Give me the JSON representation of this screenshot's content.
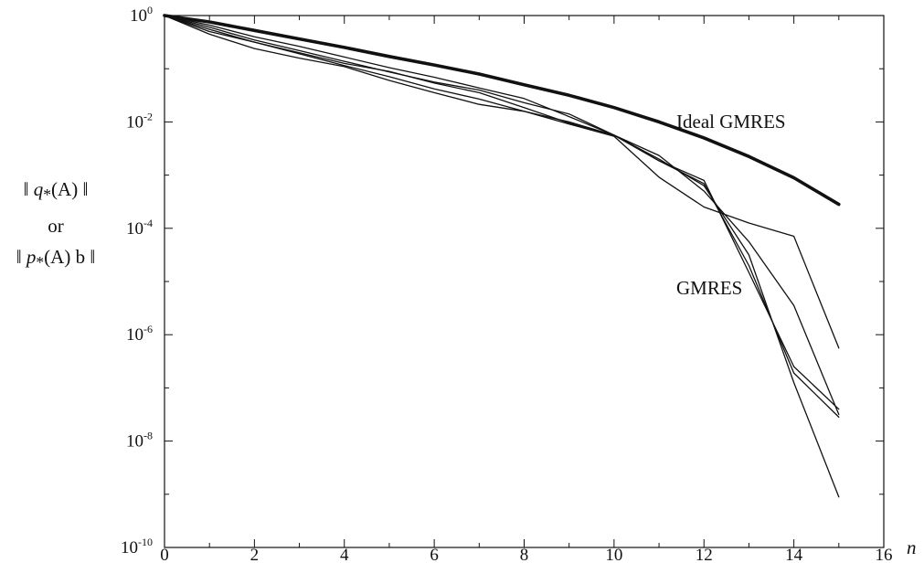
{
  "chart_data": {
    "type": "line",
    "title": "",
    "xlabel": "n",
    "ylabel": {
      "line1_left": "‖ ",
      "line1_q": "q",
      "line1_sub": "*",
      "line1_rest": "(A) ‖",
      "line2": "or",
      "line3_left": "‖ ",
      "line3_p": "p",
      "line3_sub": "*",
      "line3_rest": "(A) b ‖"
    },
    "xlim": [
      0,
      16
    ],
    "ylim_exponent": [
      -10,
      0
    ],
    "y_scale": "log10",
    "grid": false,
    "x_ticks": [
      "0",
      "2",
      "4",
      "6",
      "8",
      "10",
      "12",
      "14",
      "16"
    ],
    "y_ticks": [
      {
        "base": "10",
        "exp": "0"
      },
      {
        "base": "10",
        "exp": "-2"
      },
      {
        "base": "10",
        "exp": "-4"
      },
      {
        "base": "10",
        "exp": "-6"
      },
      {
        "base": "10",
        "exp": "-8"
      },
      {
        "base": "10",
        "exp": "-10"
      }
    ],
    "annotations": {
      "ideal": "Ideal GMRES",
      "gmres": "GMRES"
    },
    "series": [
      {
        "name": "Ideal GMRES",
        "x": [
          0,
          1,
          2,
          3,
          4,
          5,
          6,
          7,
          8,
          9,
          10,
          11,
          12,
          13,
          14,
          15
        ],
        "log10_y": [
          0,
          -0.12,
          -0.28,
          -0.44,
          -0.6,
          -0.77,
          -0.93,
          -1.1,
          -1.3,
          -1.5,
          -1.73,
          -2.0,
          -2.3,
          -2.65,
          -3.05,
          -3.55
        ],
        "bold": true
      },
      {
        "x": [
          0,
          1,
          2,
          3,
          4,
          5,
          6,
          7,
          8,
          9,
          10,
          11,
          12,
          13,
          14,
          15
        ],
        "log10_y": [
          0,
          -0.35,
          -0.62,
          -0.8,
          -0.96,
          -1.22,
          -1.45,
          -1.67,
          -1.8,
          -2.04,
          -2.27,
          -3.04,
          -3.6,
          -3.9,
          -4.15,
          -6.25
        ]
      },
      {
        "x": [
          0,
          1,
          2,
          3,
          4,
          5,
          6,
          7,
          8,
          9,
          10,
          11,
          12,
          13,
          14,
          15
        ],
        "log10_y": [
          0,
          -0.3,
          -0.5,
          -0.72,
          -0.94,
          -1.15,
          -1.38,
          -1.57,
          -1.8,
          -2.0,
          -2.25,
          -2.73,
          -3.1,
          -4.83,
          -6.6,
          -7.4
        ]
      },
      {
        "x": [
          0,
          1,
          2,
          3,
          4,
          5,
          6,
          7,
          8,
          9,
          10,
          11,
          12,
          13,
          14,
          15
        ],
        "log10_y": [
          0,
          -0.22,
          -0.46,
          -0.66,
          -0.86,
          -1.06,
          -1.25,
          -1.4,
          -1.64,
          -1.85,
          -2.25,
          -2.73,
          -3.16,
          -4.7,
          -6.72,
          -7.55
        ]
      },
      {
        "x": [
          0,
          1,
          2,
          3,
          4,
          5,
          6,
          7,
          8,
          9,
          10,
          11,
          12,
          13,
          14,
          15
        ],
        "log10_y": [
          0,
          -0.26,
          -0.5,
          -0.7,
          -0.9,
          -1.05,
          -1.27,
          -1.45,
          -1.73,
          -2.02,
          -2.25,
          -2.63,
          -3.3,
          -4.25,
          -5.45,
          -7.5
        ]
      },
      {
        "x": [
          0,
          1,
          2,
          3,
          4,
          5,
          6,
          7,
          8,
          9,
          10,
          11,
          12,
          13,
          14,
          15
        ],
        "log10_y": [
          0,
          -0.18,
          -0.4,
          -0.58,
          -0.78,
          -0.98,
          -1.16,
          -1.36,
          -1.56,
          -1.9,
          -2.25,
          -2.7,
          -3.2,
          -4.5,
          -6.9,
          -9.05
        ]
      }
    ]
  }
}
